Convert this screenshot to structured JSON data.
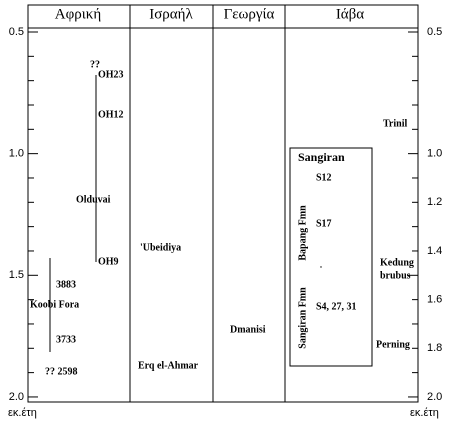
{
  "header": {
    "columns": [
      "Αφρική",
      "Ισραήλ",
      "Γεωργία",
      "Ιάβα"
    ]
  },
  "axis": {
    "left_ticks": [
      "0.5",
      "1.0",
      "1.5",
      "2.0"
    ],
    "right_ticks": [
      "0.5",
      "1.0",
      "1.2",
      "1.4",
      "1.6",
      "1.8",
      "2.0"
    ],
    "left_unit": "εκ.έτη",
    "right_unit": "εκ.έτη"
  },
  "africa": {
    "labels": [
      "??",
      "OH23",
      "OH12",
      "Olduvai",
      "OH9",
      "3883",
      "Koobi Fora",
      "3733",
      "?? 2598"
    ]
  },
  "israel": {
    "labels": [
      "'Ubeidiya",
      "Erq el-Ahmar"
    ]
  },
  "georgia": {
    "labels": [
      "Dmanisi"
    ]
  },
  "java": {
    "box_title": "Sangiran",
    "box_labels": [
      "S12",
      "S17",
      "S4, 27,  31"
    ],
    "formations": [
      "Bapang Fmn",
      "Sangiran Fmn"
    ],
    "labels": [
      "Trinil",
      "Kedung",
      "brubus",
      "Perning"
    ]
  }
}
